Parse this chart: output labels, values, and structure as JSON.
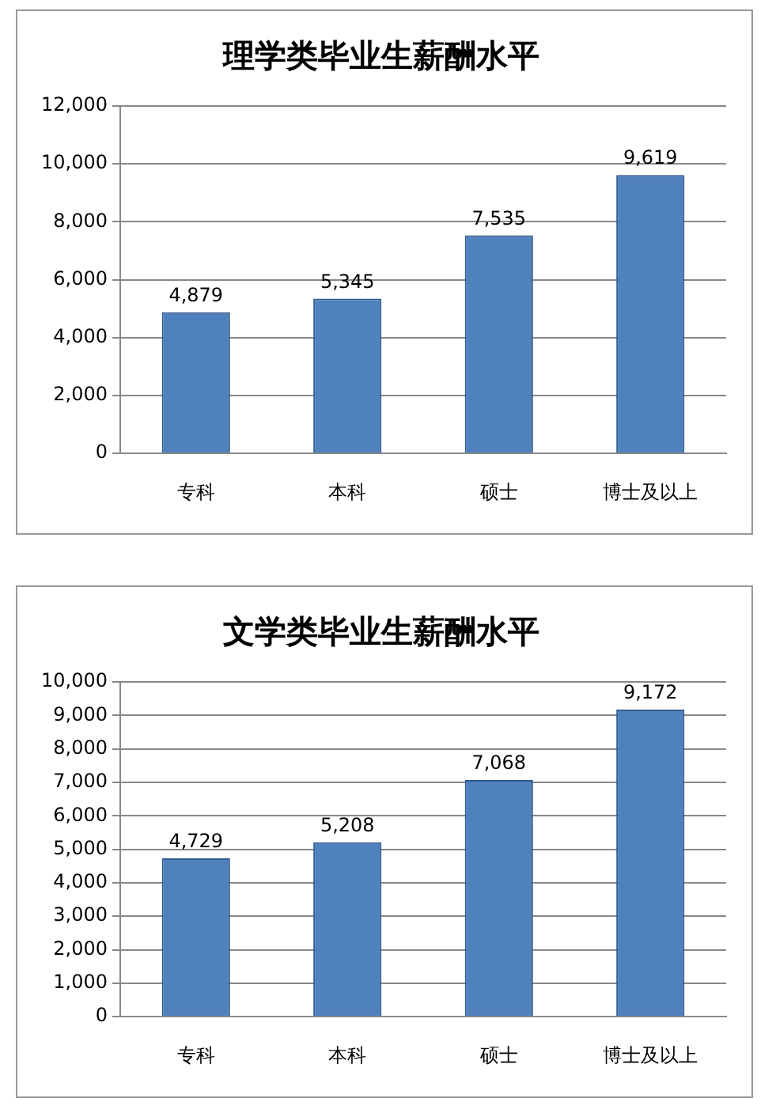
{
  "chart_data": [
    {
      "type": "bar",
      "title": "理学类毕业生薪酬水平",
      "categories": [
        "专科",
        "本科",
        "硕士",
        "博士及以上"
      ],
      "values": [
        4879,
        5345,
        7535,
        9619
      ],
      "value_labels": [
        "4,879",
        "5,345",
        "7,535",
        "9,619"
      ],
      "color": "#4f81bd",
      "ylim": [
        0,
        12000
      ],
      "yticks": [
        0,
        {
          "value": 2000,
          "label": "2,000"
        },
        {
          "value": 4000,
          "label": "4,000"
        },
        {
          "value": 6000,
          "label": "6,000"
        },
        {
          "value": 8000,
          "label": "8,000"
        },
        {
          "value": 10000,
          "label": "10,000"
        },
        {
          "value": 12000,
          "label": "12,000"
        }
      ],
      "grid": "y"
    },
    {
      "type": "bar",
      "title": "文学类毕业生薪酬水平",
      "categories": [
        "专科",
        "本科",
        "硕士",
        "博士及以上"
      ],
      "values": [
        4729,
        5208,
        7068,
        9172
      ],
      "value_labels": [
        "4,729",
        "5,208",
        "7,068",
        "9,172"
      ],
      "color": "#4f81bd",
      "ylim": [
        0,
        10000
      ],
      "yticks": [
        0,
        {
          "value": 1000,
          "label": "1,000"
        },
        {
          "value": 2000,
          "label": "2,000"
        },
        {
          "value": 3000,
          "label": "3,000"
        },
        {
          "value": 4000,
          "label": "4,000"
        },
        {
          "value": 5000,
          "label": "5,000"
        },
        {
          "value": 6000,
          "label": "6,000"
        },
        {
          "value": 7000,
          "label": "7,000"
        },
        {
          "value": 8000,
          "label": "8,000"
        },
        {
          "value": 9000,
          "label": "9,000"
        },
        {
          "value": 10000,
          "label": "10,000"
        }
      ],
      "grid": "y"
    }
  ]
}
